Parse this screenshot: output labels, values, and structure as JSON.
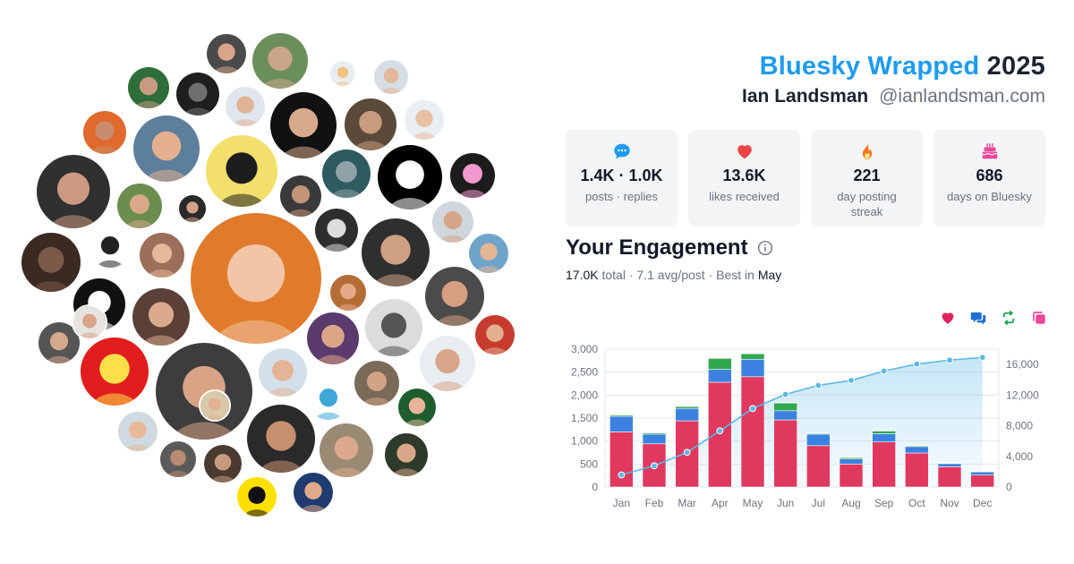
{
  "header": {
    "brand": "Bluesky Wrapped",
    "year": "2025",
    "display_name": "Ian Landsman",
    "handle": "@ianlandsman.com"
  },
  "stats": [
    {
      "icon": "speech-bubble-icon",
      "value": "1.4K · 1.0K",
      "label": "posts · replies",
      "color": "#1d9bf0"
    },
    {
      "icon": "heart-icon",
      "value": "13.6K",
      "label": "likes received",
      "color": "#ef4444"
    },
    {
      "icon": "fire-icon",
      "value": "221",
      "label": "day posting streak",
      "color": "#f97316"
    },
    {
      "icon": "cake-icon",
      "value": "686",
      "label": "days on Bluesky",
      "color": "#ec4899"
    }
  ],
  "engagement": {
    "title": "Your Engagement",
    "total": "17.0K",
    "total_word": "total",
    "avg": "7.1 avg/post",
    "best_prefix": "Best in",
    "best_month": "May"
  },
  "legend_icons": [
    {
      "icon": "heart-icon",
      "color": "#e0245e"
    },
    {
      "icon": "reply-icon",
      "color": "#1d6fd6"
    },
    {
      "icon": "repost-icon",
      "color": "#16a34a"
    },
    {
      "icon": "quote-icon",
      "color": "#ec4899"
    }
  ],
  "avatars": [
    {
      "name": "avatar-1",
      "bg": "#4a4a4a",
      "fg": "#d8a48a"
    },
    {
      "name": "avatar-2",
      "bg": "#6b8f5a",
      "fg": "#c9a58c"
    },
    {
      "name": "avatar-3",
      "bg": "#e8edf2",
      "fg": "#f1c27d"
    },
    {
      "name": "avatar-4",
      "bg": "#d7dde4",
      "fg": "#e3b89a"
    },
    {
      "name": "avatar-5",
      "bg": "#2f6e3a",
      "fg": "#c79b80"
    },
    {
      "name": "avatar-6",
      "bg": "#1f1f1f",
      "fg": "#6f6f6f"
    },
    {
      "name": "avatar-7",
      "bg": "#dfe6ee",
      "fg": "#e0b494"
    },
    {
      "name": "avatar-8",
      "bg": "#111111",
      "fg": "#d9a98e"
    },
    {
      "name": "avatar-9",
      "bg": "#5b4a3a",
      "fg": "#c99a7e"
    },
    {
      "name": "avatar-10",
      "bg": "#e9eef3",
      "fg": "#e8c0a4"
    },
    {
      "name": "avatar-11",
      "bg": "#e06a2c",
      "fg": "#c98c6c"
    },
    {
      "name": "avatar-12",
      "bg": "#5d7f9c",
      "fg": "#e4b08f"
    },
    {
      "name": "avatar-13",
      "bg": "#f3df6b",
      "fg": "#1d1d1d"
    },
    {
      "name": "avatar-14",
      "bg": "#2d5b5f",
      "fg": "#8fa3a6"
    },
    {
      "name": "avatar-15",
      "bg": "#000000",
      "fg": "#ffffff"
    },
    {
      "name": "avatar-16",
      "bg": "#1c1c1c",
      "fg": "#f29ad0"
    },
    {
      "name": "avatar-17",
      "bg": "#303030",
      "fg": "#cc9a80"
    },
    {
      "name": "avatar-18",
      "bg": "#6b8e4e",
      "fg": "#d9a88a"
    },
    {
      "name": "avatar-19",
      "bg": "#2a2a2a",
      "fg": "#d3a286"
    },
    {
      "name": "avatar-20",
      "bg": "#3a3a3a",
      "fg": "#c49478"
    },
    {
      "name": "avatar-21",
      "bg": "#2e2e2e",
      "fg": "#dcdcdc"
    },
    {
      "name": "avatar-22",
      "bg": "#2f2f2f",
      "fg": "#cfa184"
    },
    {
      "name": "avatar-23",
      "bg": "#cfd6dc",
      "fg": "#d6a588"
    },
    {
      "name": "avatar-24",
      "bg": "#6fa4c9",
      "fg": "#e3b795"
    },
    {
      "name": "avatar-25",
      "bg": "#3b2a22",
      "fg": "#7a5a48"
    },
    {
      "name": "avatar-26",
      "bg": "#ffffff",
      "fg": "#222222"
    },
    {
      "name": "avatar-27",
      "bg": "#9c6f5a",
      "fg": "#e7b79a"
    },
    {
      "name": "avatar-28",
      "bg": "#e07b2c",
      "fg": "#f2c5a6"
    },
    {
      "name": "avatar-29",
      "bg": "#b56d37",
      "fg": "#e3a988"
    },
    {
      "name": "avatar-30",
      "bg": "#4b4b4b",
      "fg": "#d59f80"
    },
    {
      "name": "avatar-31",
      "bg": "#111111",
      "fg": "#ffffff"
    },
    {
      "name": "avatar-32",
      "bg": "#5b4038",
      "fg": "#dba98d"
    },
    {
      "name": "avatar-33",
      "bg": "#dcdcdc",
      "fg": "#555555"
    },
    {
      "name": "avatar-34",
      "bg": "#c73b2f",
      "fg": "#e2b090"
    },
    {
      "name": "avatar-35",
      "bg": "#555555",
      "fg": "#d6a88c"
    },
    {
      "name": "avatar-36",
      "bg": "#e11d1d",
      "fg": "#fde047"
    },
    {
      "name": "avatar-37",
      "bg": "#3d3d3d",
      "fg": "#d9a386"
    },
    {
      "name": "avatar-38",
      "bg": "#d3e0ea",
      "fg": "#e4b496"
    },
    {
      "name": "avatar-39",
      "bg": "#5b3a6e",
      "fg": "#dca686"
    },
    {
      "name": "avatar-40",
      "bg": "#ffffff",
      "fg": "#3ea7d8"
    },
    {
      "name": "avatar-41",
      "bg": "#7a6a58",
      "fg": "#d1a387"
    },
    {
      "name": "avatar-42",
      "bg": "#e8edf2",
      "fg": "#d9a689"
    },
    {
      "name": "avatar-43",
      "bg": "#1e5e2e",
      "fg": "#e9b497"
    },
    {
      "name": "avatar-44",
      "bg": "#cfd9e2",
      "fg": "#e8b999"
    },
    {
      "name": "avatar-45",
      "bg": "#5a5a5a",
      "fg": "#b98b70"
    },
    {
      "name": "avatar-46",
      "bg": "#4a3a30",
      "fg": "#c79a7e"
    },
    {
      "name": "avatar-47",
      "bg": "#2a2a2a",
      "fg": "#c8906f"
    },
    {
      "name": "avatar-48",
      "bg": "#9a8a74",
      "fg": "#dba98c"
    },
    {
      "name": "avatar-49",
      "bg": "#2f3b2a",
      "fg": "#d8a688"
    },
    {
      "name": "avatar-50",
      "bg": "#fde000",
      "fg": "#111111"
    },
    {
      "name": "avatar-51",
      "bg": "#1f3b70",
      "fg": "#e0aa8a"
    },
    {
      "name": "avatar-52",
      "bg": "#d9c9a8",
      "fg": "#e2b293"
    },
    {
      "name": "avatar-53",
      "bg": "#e7e3df",
      "fg": "#d9a487"
    }
  ],
  "chart_data": {
    "type": "bar",
    "stacked": true,
    "categories": [
      "Jan",
      "Feb",
      "Mar",
      "Apr",
      "May",
      "Jun",
      "Jul",
      "Aug",
      "Sep",
      "Oct",
      "Nov",
      "Dec"
    ],
    "series": [
      {
        "key": "likes",
        "color": "#e0385e",
        "values": [
          1200,
          940,
          1440,
          2280,
          2400,
          1460,
          900,
          500,
          980,
          740,
          440,
          260
        ]
      },
      {
        "key": "replies",
        "color": "#3b82e0",
        "values": [
          340,
          210,
          270,
          280,
          380,
          200,
          250,
          110,
          180,
          140,
          70,
          70
        ]
      },
      {
        "key": "reposts",
        "color": "#2fa84f",
        "values": [
          30,
          30,
          40,
          240,
          120,
          170,
          20,
          30,
          60,
          20,
          10,
          10
        ]
      },
      {
        "key": "quotes",
        "color": "#f3a0c8",
        "values": [
          10,
          10,
          10,
          10,
          10,
          10,
          10,
          10,
          10,
          10,
          10,
          10
        ]
      }
    ],
    "cumulative": {
      "key": "cumulative",
      "color": "#5bb8e6",
      "values": [
        1580,
        2770,
        4530,
        7330,
        10250,
        12090,
        13270,
        13920,
        15140,
        16050,
        16570,
        16920
      ]
    },
    "ylim": [
      0,
      3000
    ],
    "yticks": [
      "0",
      "500",
      "1,000",
      "1,500",
      "2,000",
      "2,500",
      "3,000"
    ],
    "y2lim": [
      0,
      18000
    ],
    "y2ticks": [
      "0",
      "4,000",
      "8,000",
      "12,000",
      "16,000"
    ],
    "grid": true
  }
}
